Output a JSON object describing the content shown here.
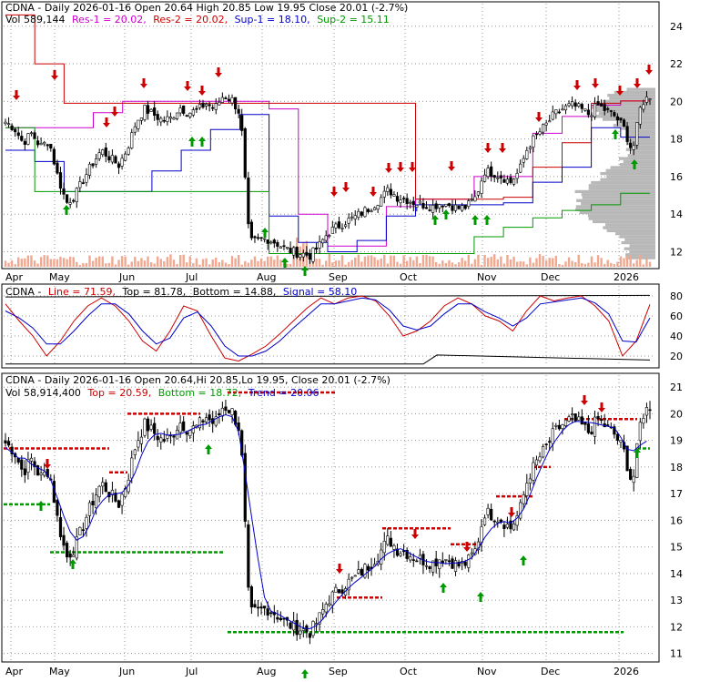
{
  "colors": {
    "background": "#ffffff",
    "frame": "#000000",
    "grid": "#9a9a9a",
    "candle": "#000000",
    "volume": "#f0a890",
    "volume_profile": "#b8b8b8",
    "res1": "#cc00cc",
    "res2": "#cc0000",
    "sup1": "#0000cc",
    "sup2": "#009900",
    "line": "#cc0000",
    "signal": "#0000cc",
    "top": "#cc0000",
    "bottom": "#009900",
    "trend": "#0000cc",
    "buy_arrow": "#009900",
    "sell_arrow": "#cc0000"
  },
  "panel1": {
    "title": "CDNA - Daily 2026-01-16 Open 20.64  High 20.85  Low 19.95  Close 20.01 (-2.7%)",
    "legend": {
      "vol": "Vol 589,144",
      "res1": "Res-1 = 20.02,",
      "res2": "Res-2 = 20.02,",
      "sup1": "Sup-1 = 18.10,",
      "sup2": "Sup-2 = 15.11"
    },
    "y_ticks": [
      "12",
      "14",
      "16",
      "18",
      "20",
      "22",
      "24"
    ],
    "x_ticks": [
      "Apr",
      "May",
      "Jun",
      "Jul",
      "Aug",
      "Sep",
      "Oct",
      "Nov",
      "Dec",
      "2026"
    ]
  },
  "panel2": {
    "legend": {
      "name": "CDNA -",
      "line": "Line = 71.59,",
      "top": "Top = 81.78,",
      "bottom": "Bottom = 14.88,",
      "signal": "Signal = 58.10"
    },
    "y_ticks": [
      "20",
      "40",
      "60",
      "80"
    ]
  },
  "panel3": {
    "title": "CDNA - Daily 2026-01-16 Open 20.64,Hi 20.85,Lo 19.95, Close 20.01 (-2.7%)",
    "legend": {
      "vol": "Vol 58,914,400",
      "top": "Top = 20.59,",
      "bottom": "Bottom = 18.72,",
      "trend": "Trend = 20.06"
    },
    "y_ticks": [
      "11",
      "12",
      "13",
      "14",
      "15",
      "16",
      "17",
      "18",
      "19",
      "20",
      "21"
    ],
    "x_ticks": [
      "Apr",
      "May",
      "Jun",
      "Jul",
      "Aug",
      "Sep",
      "Oct",
      "Nov",
      "Dec",
      "2026"
    ]
  },
  "chart_data": [
    {
      "type": "candlestick",
      "title": "CDNA - Daily 2026-01-16 Open 20.64  High 20.85  Low 19.95  Close 20.01 (-2.7%)",
      "y_range": [
        11.2,
        25.2
      ],
      "y_ticks": [
        12,
        14,
        16,
        18,
        20,
        22,
        24
      ],
      "x_ticks": [
        "Apr",
        "May",
        "Jun",
        "Jul",
        "Aug",
        "Sep",
        "Oct",
        "Nov",
        "Dec",
        "2026"
      ],
      "grid": true,
      "close_path": [
        18.9,
        18.6,
        17.8,
        18.3,
        17.6,
        17.9,
        16.0,
        14.6,
        15.0,
        15.9,
        16.7,
        17.4,
        17.0,
        16.6,
        17.5,
        18.9,
        19.6,
        19.3,
        19.0,
        19.1,
        19.7,
        19.4,
        19.5,
        19.9,
        19.6,
        20.3,
        20.1,
        19.3,
        12.5,
        12.6,
        12.7,
        12.5,
        12.2,
        12.0,
        11.9,
        11.8,
        12.3,
        13.0,
        13.3,
        13.6,
        13.8,
        14.1,
        14.4,
        14.8,
        15.3,
        14.9,
        14.8,
        14.6,
        14.5,
        14.4,
        14.6,
        14.5,
        14.3,
        14.4,
        14.9,
        16.3,
        16.2,
        16.0,
        15.7,
        16.3,
        17.6,
        18.2,
        18.7,
        19.3,
        19.6,
        19.8,
        19.6,
        19.3,
        19.8,
        19.5,
        19.2,
        18.6,
        17.3,
        19.9,
        20.3
      ],
      "series": [
        {
          "name": "Res-1",
          "last": 20.02
        },
        {
          "name": "Res-2",
          "last": 20.02
        },
        {
          "name": "Sup-1",
          "last": 18.1
        },
        {
          "name": "Sup-2",
          "last": 15.11
        }
      ],
      "volume_label": "Vol 589,144"
    },
    {
      "type": "line",
      "y_range": [
        10,
        90
      ],
      "y_ticks": [
        20,
        40,
        60,
        80
      ],
      "series": [
        {
          "name": "Line",
          "last": 71.59,
          "values": [
            72,
            55,
            40,
            20,
            35,
            55,
            70,
            78,
            70,
            55,
            35,
            25,
            45,
            70,
            65,
            40,
            18,
            15,
            22,
            30,
            42,
            55,
            68,
            78,
            72,
            78,
            80,
            75,
            60,
            40,
            45,
            55,
            70,
            78,
            72,
            60,
            55,
            45,
            65,
            80,
            75,
            78,
            80,
            70,
            55,
            20,
            35,
            71.59
          ]
        },
        {
          "name": "Signal",
          "last": 58.1,
          "values": [
            65,
            58,
            48,
            32,
            32,
            45,
            60,
            72,
            72,
            62,
            45,
            32,
            38,
            58,
            64,
            50,
            30,
            20,
            20,
            25,
            35,
            48,
            60,
            72,
            72,
            75,
            78,
            76,
            66,
            50,
            46,
            50,
            62,
            72,
            72,
            64,
            58,
            50,
            58,
            72,
            74,
            76,
            78,
            73,
            62,
            35,
            34,
            58.1
          ]
        }
      ],
      "levels": [
        {
          "name": "Top",
          "last": 81.78
        },
        {
          "name": "Bottom",
          "last": 14.88
        }
      ]
    },
    {
      "type": "candlestick",
      "title": "CDNA - Daily 2026-01-16 Open 20.64,Hi 20.85,Lo 19.95, Close 20.01 (-2.7%)",
      "y_range": [
        10.75,
        21.45
      ],
      "y_ticks": [
        11,
        12,
        13,
        14,
        15,
        16,
        17,
        18,
        19,
        20,
        21
      ],
      "x_ticks": [
        "Apr",
        "May",
        "Jun",
        "Jul",
        "Aug",
        "Sep",
        "Oct",
        "Nov",
        "Dec",
        "2026"
      ],
      "grid": true,
      "close_path": [
        18.9,
        18.6,
        17.8,
        18.3,
        17.6,
        17.9,
        16.0,
        14.6,
        15.0,
        15.9,
        16.7,
        17.4,
        17.0,
        16.6,
        17.5,
        18.9,
        19.6,
        19.3,
        19.0,
        19.1,
        19.7,
        19.4,
        19.5,
        19.9,
        19.6,
        20.3,
        20.1,
        19.3,
        12.5,
        12.6,
        12.7,
        12.5,
        12.2,
        12.0,
        11.9,
        11.8,
        12.3,
        13.0,
        13.3,
        13.6,
        13.8,
        14.1,
        14.4,
        14.8,
        15.3,
        14.9,
        14.8,
        14.6,
        14.5,
        14.4,
        14.6,
        14.5,
        14.3,
        14.4,
        14.9,
        16.3,
        16.2,
        16.0,
        15.7,
        16.3,
        17.6,
        18.2,
        18.7,
        19.3,
        19.6,
        19.8,
        19.6,
        19.3,
        19.8,
        19.5,
        19.2,
        18.6,
        17.3,
        19.9,
        20.3
      ],
      "series": [
        {
          "name": "Top",
          "last": 20.59
        },
        {
          "name": "Bottom",
          "last": 18.72
        },
        {
          "name": "Trend",
          "last": 20.06
        }
      ],
      "volume_label": "Vol 58,914,400"
    }
  ]
}
